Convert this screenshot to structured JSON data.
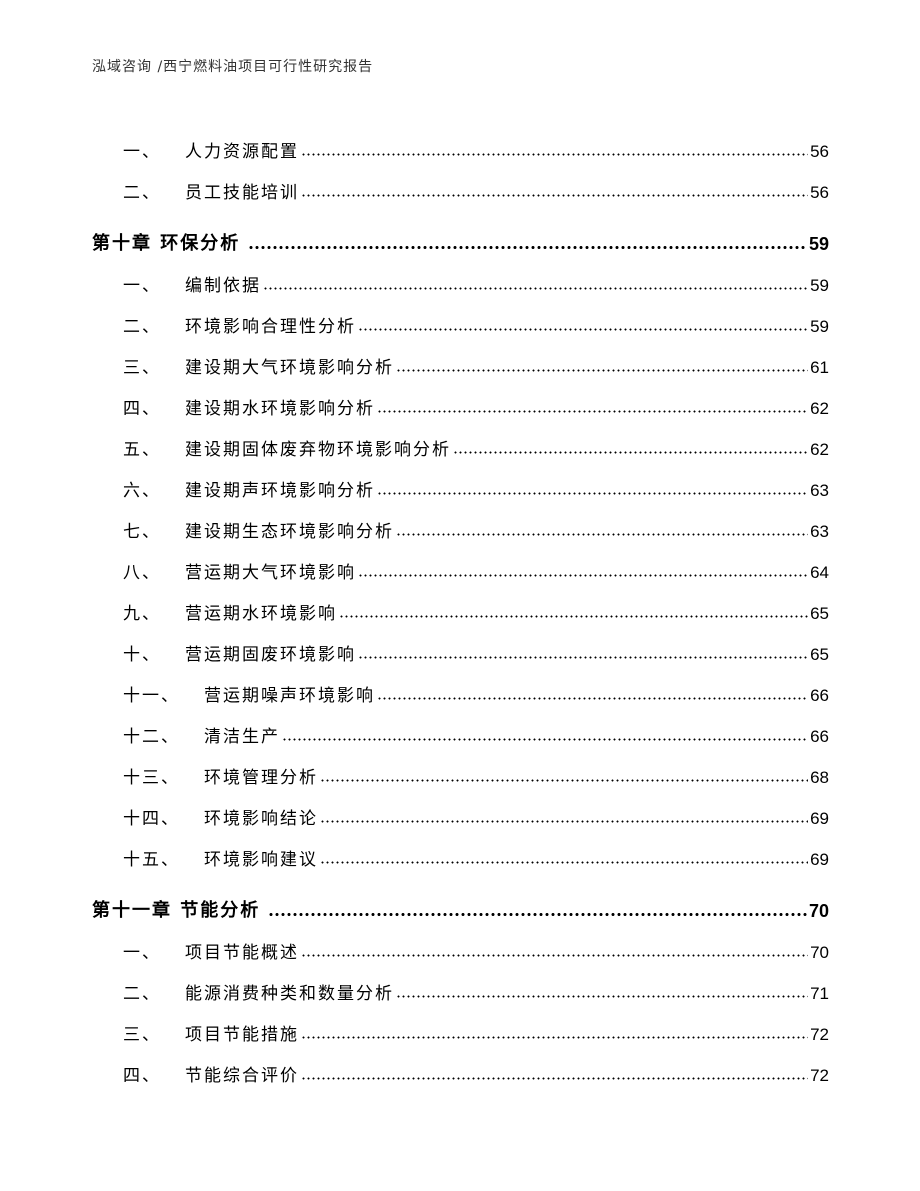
{
  "header": "泓域咨询 /西宁燃料油项目可行性研究报告",
  "entries": [
    {
      "type": "sub",
      "num": "一、",
      "title": "人力资源配置",
      "page": "56"
    },
    {
      "type": "sub",
      "num": "二、",
      "title": "员工技能培训",
      "page": "56"
    },
    {
      "type": "chap",
      "title": "第十章 环保分析",
      "page": "59"
    },
    {
      "type": "sub",
      "num": "一、",
      "title": "编制依据",
      "page": "59"
    },
    {
      "type": "sub",
      "num": "二、",
      "title": "环境影响合理性分析",
      "page": "59"
    },
    {
      "type": "sub",
      "num": "三、",
      "title": "建设期大气环境影响分析",
      "page": "61"
    },
    {
      "type": "sub",
      "num": "四、",
      "title": "建设期水环境影响分析",
      "page": "62"
    },
    {
      "type": "sub",
      "num": "五、",
      "title": "建设期固体废弃物环境影响分析",
      "page": "62"
    },
    {
      "type": "sub",
      "num": "六、",
      "title": "建设期声环境影响分析",
      "page": "63"
    },
    {
      "type": "sub",
      "num": "七、",
      "title": "建设期生态环境影响分析",
      "page": "63"
    },
    {
      "type": "sub",
      "num": "八、",
      "title": "营运期大气环境影响",
      "page": "64"
    },
    {
      "type": "sub",
      "num": "九、",
      "title": "营运期水环境影响",
      "page": "65"
    },
    {
      "type": "sub",
      "num": "十、",
      "title": "营运期固废环境影响",
      "page": "65"
    },
    {
      "type": "sub",
      "num": "十一、",
      "title": "营运期噪声环境影响",
      "page": "66"
    },
    {
      "type": "sub",
      "num": "十二、",
      "title": "清洁生产",
      "page": "66"
    },
    {
      "type": "sub",
      "num": "十三、",
      "title": "环境管理分析",
      "page": "68"
    },
    {
      "type": "sub",
      "num": "十四、",
      "title": "环境影响结论",
      "page": "69"
    },
    {
      "type": "sub",
      "num": "十五、",
      "title": "环境影响建议",
      "page": "69"
    },
    {
      "type": "chap",
      "title": "第十一章 节能分析",
      "page": "70"
    },
    {
      "type": "sub",
      "num": "一、",
      "title": "项目节能概述",
      "page": "70"
    },
    {
      "type": "sub",
      "num": "二、",
      "title": "能源消费种类和数量分析",
      "page": "71"
    },
    {
      "type": "sub",
      "num": "三、",
      "title": "项目节能措施",
      "page": "72"
    },
    {
      "type": "sub",
      "num": "四、",
      "title": "节能综合评价",
      "page": "72"
    }
  ]
}
